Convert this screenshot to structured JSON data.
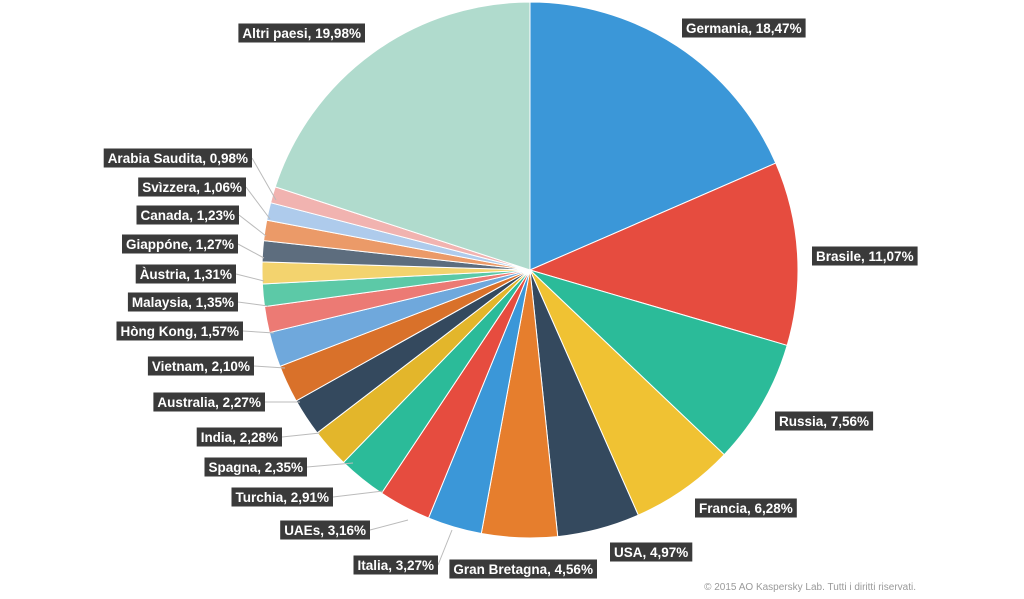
{
  "chart_data": {
    "type": "pie",
    "title": "",
    "slices": [
      {
        "label": "Germania",
        "value": 18.47,
        "text": "Germania, 18,47%",
        "color": "#3b97d8"
      },
      {
        "label": "Brasile",
        "value": 11.07,
        "text": "Brasile, 11,07%",
        "color": "#e64c3f"
      },
      {
        "label": "Russia",
        "value": 7.56,
        "text": "Russia, 7,56%",
        "color": "#2bbb99"
      },
      {
        "label": "Francia",
        "value": 6.28,
        "text": "Francia, 6,28%",
        "color": "#f0c233"
      },
      {
        "label": "USA",
        "value": 4.97,
        "text": "USA, 4,97%",
        "color": "#34495e"
      },
      {
        "label": "Gran Bretagna",
        "value": 4.56,
        "text": "Gran Bretagna, 4,56%",
        "color": "#e67e2d"
      },
      {
        "label": "Italia",
        "value": 3.27,
        "text": "Italia, 3,27%",
        "color": "#3b97d8"
      },
      {
        "label": "UAEs",
        "value": 3.16,
        "text": "UAEs, 3,16%",
        "color": "#e64c3f"
      },
      {
        "label": "Turchia",
        "value": 2.91,
        "text": "Turchia, 2,91%",
        "color": "#2bbb99"
      },
      {
        "label": "Spagna",
        "value": 2.35,
        "text": "Spagna, 2,35%",
        "color": "#e3b62b"
      },
      {
        "label": "India",
        "value": 2.28,
        "text": "India, 2,28%",
        "color": "#34495e"
      },
      {
        "label": "Australia",
        "value": 2.27,
        "text": "Australia, 2,27%",
        "color": "#d9712a"
      },
      {
        "label": "Vietnam",
        "value": 2.1,
        "text": "Vietnam, 2,10%",
        "color": "#6fa8dc"
      },
      {
        "label": "Hòng Kong",
        "value": 1.57,
        "text": "Hòng Kong, 1,57%",
        "color": "#ec7a74"
      },
      {
        "label": "Malaysia",
        "value": 1.35,
        "text": "Malaysia, 1,35%",
        "color": "#5cc9a7"
      },
      {
        "label": "Àustria",
        "value": 1.31,
        "text": "Àustria, 1,31%",
        "color": "#f3d36e"
      },
      {
        "label": "Giappóne",
        "value": 1.27,
        "text": "Giappóne, 1,27%",
        "color": "#5d6d7e"
      },
      {
        "label": "Canada",
        "value": 1.23,
        "text": "Canada, 1,23%",
        "color": "#eb9a68"
      },
      {
        "label": "Svìzzera",
        "value": 1.06,
        "text": "Svìzzera, 1,06%",
        "color": "#aecbec"
      },
      {
        "label": "Arabia Saudita",
        "value": 0.98,
        "text": "Arabia Saudita, 0,98%",
        "color": "#f1b3b0"
      },
      {
        "label": "Altri paesi",
        "value": 19.98,
        "text": "Altri paesi, 19,98%",
        "color": "#b0dbcd"
      }
    ]
  },
  "copyright": "© 2015 AO Kaspersky Lab. Tutti i diritti riservati."
}
